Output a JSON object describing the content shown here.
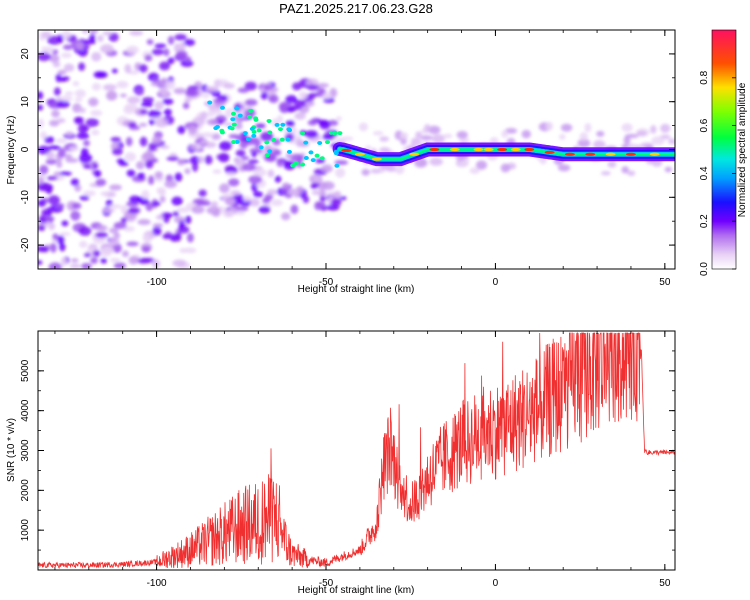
{
  "chart_data": [
    {
      "type": "heatmap",
      "title": "PAZ1.2025.217.06.23.G28",
      "xlabel": "Height of straight line (km)",
      "ylabel": "Frequency (Hz)",
      "xlim": [
        -135,
        53
      ],
      "ylim": [
        -25,
        25
      ],
      "xticks": [
        -100,
        -50,
        0,
        50
      ],
      "yticks": [
        -20,
        -10,
        0,
        10,
        20
      ],
      "colorbar": {
        "label": "Normalized spectral amplitude",
        "range": [
          0,
          1
        ],
        "ticks": [
          0.0,
          0.2,
          0.4,
          0.6,
          0.8
        ]
      },
      "ridge": {
        "description_points_x": [
          -85,
          -75,
          -65,
          -55,
          -45,
          -35,
          -28,
          -20,
          -10,
          0,
          10,
          20,
          30,
          40,
          53
        ],
        "description_points_y": [
          5,
          3,
          0,
          1,
          0,
          -2,
          -2,
          0,
          0,
          0,
          0,
          -1,
          -1,
          -1,
          -1
        ]
      },
      "colors": {
        "scale": [
          "#ffffff",
          "#e9d2f5",
          "#b37cf0",
          "#6a00ff",
          "#0010ff",
          "#00c8ff",
          "#00ff60",
          "#9aff00",
          "#ffd000",
          "#ff3000",
          "#ff1060"
        ]
      }
    },
    {
      "type": "line",
      "title": "",
      "xlabel": "Height of straight line (km)",
      "ylabel": "SNR (10 * v/v)",
      "xlim": [
        -135,
        53
      ],
      "ylim": [
        0,
        6000
      ],
      "xticks": [
        -100,
        -50,
        0,
        50
      ],
      "yticks": [
        1000,
        2000,
        3000,
        4000,
        5000
      ],
      "series": [
        {
          "color": "#f03030",
          "x": [
            -135,
            -120,
            -110,
            -100,
            -95,
            -90,
            -85,
            -80,
            -75,
            -70,
            -66,
            -64,
            -62,
            -60,
            -55,
            -50,
            -45,
            -40,
            -37,
            -35,
            -33,
            -31,
            -29,
            -27,
            -25,
            -22,
            -20,
            -17,
            -15,
            -12,
            -10,
            -8,
            -5,
            -2,
            0,
            5,
            10,
            15,
            20,
            25,
            30,
            35,
            40,
            43,
            44,
            45,
            50,
            53
          ],
          "y": [
            120,
            120,
            140,
            200,
            350,
            500,
            700,
            900,
            1100,
            1200,
            1300,
            1300,
            700,
            400,
            250,
            180,
            350,
            500,
            900,
            1200,
            2600,
            3100,
            2400,
            2000,
            1600,
            2000,
            2300,
            2600,
            2800,
            3000,
            3200,
            3200,
            3400,
            3500,
            3500,
            3700,
            3900,
            4200,
            4500,
            4900,
            5200,
            5500,
            5700,
            5750,
            3000,
            2950,
            2950,
            2950
          ]
        }
      ]
    }
  ]
}
